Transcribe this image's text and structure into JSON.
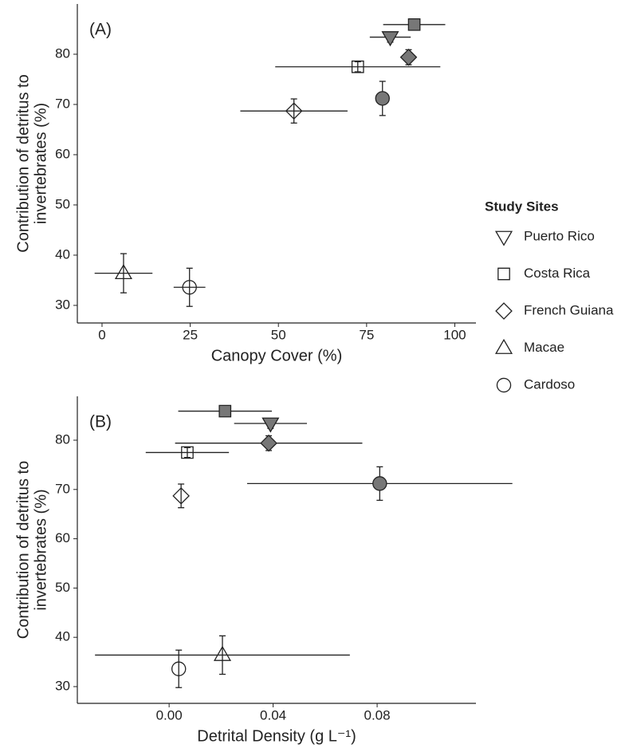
{
  "chart_data": [
    {
      "type": "scatter",
      "title": "(A)",
      "x_label": "Canopy Cover (%)",
      "y_label": [
        "Contribution of detritus to",
        "invertebrates (%)"
      ],
      "xlim": [
        -7,
        106
      ],
      "ylim": [
        26.5,
        90
      ],
      "xticks": [
        0,
        25,
        50,
        75,
        100
      ],
      "yticks": [
        30,
        40,
        50,
        60,
        70,
        80
      ],
      "legend": {
        "title": "Study Sites",
        "position": "right"
      },
      "fill_color": "#777777",
      "series": [
        {
          "name": "Puerto Rico",
          "marker": "triangle-down",
          "x": [
            81.7
          ],
          "values": [
            83.4
          ],
          "x_err": [
            5.8
          ],
          "y_err": [
            1.0
          ],
          "filled": [
            true
          ]
        },
        {
          "name": "Costa Rica",
          "marker": "square",
          "x": [
            88.5,
            72.5
          ],
          "values": [
            85.9,
            77.5
          ],
          "x_err": [
            8.8,
            23.4
          ],
          "y_err": [
            1.0,
            1.0
          ],
          "filled": [
            true,
            false
          ]
        },
        {
          "name": "French Guiana",
          "marker": "diamond",
          "x": [
            86.9,
            54.4
          ],
          "values": [
            79.4,
            68.7
          ],
          "x_err": [
            1.0,
            15.2
          ],
          "y_err": [
            1.5,
            2.4
          ],
          "filled": [
            true,
            false
          ]
        },
        {
          "name": "Macae",
          "marker": "triangle-up",
          "x": [
            6.1
          ],
          "values": [
            36.4
          ],
          "x_err": [
            8.2
          ],
          "y_err": [
            3.9
          ],
          "filled": [
            false
          ]
        },
        {
          "name": "Cardoso",
          "marker": "circle",
          "x": [
            79.5,
            24.8
          ],
          "values": [
            71.2,
            33.6
          ],
          "x_err": [
            2.0,
            4.5
          ],
          "y_err": [
            3.4,
            3.8
          ],
          "filled": [
            true,
            false
          ]
        }
      ]
    },
    {
      "type": "scatter",
      "title": "(B)",
      "x_label": "Detrital Density (g L⁻¹)",
      "y_label": [
        "Contribution of detritus to",
        "invertebrates (%)"
      ],
      "xlim": [
        -0.0353,
        0.118
      ],
      "ylim": [
        26.6,
        88.9
      ],
      "xticks": [
        {
          "value": 0,
          "label": "0.00"
        },
        {
          "value": 0.04,
          "label": "0.04"
        },
        {
          "value": 0.08,
          "label": "0.08"
        }
      ],
      "yticks": [
        30,
        40,
        50,
        60,
        70,
        80
      ],
      "fill_color": "#777777",
      "series": [
        {
          "marker": "triangle-down",
          "x": [
            0.039
          ],
          "values": [
            83.4
          ],
          "x_err": [
            0.014
          ],
          "y_err": [
            1.0
          ],
          "filled": [
            true
          ]
        },
        {
          "marker": "square",
          "x": [
            0.0215,
            0.007
          ],
          "values": [
            85.9,
            77.5
          ],
          "x_err": [
            0.018,
            0.016
          ],
          "y_err": [
            1.0,
            1.0
          ],
          "filled": [
            true,
            false
          ]
        },
        {
          "marker": "diamond",
          "x": [
            0.0383,
            0.0046
          ],
          "values": [
            79.4,
            68.7
          ],
          "x_err": [
            0.036,
            0
          ],
          "y_err": [
            1.5,
            2.4
          ],
          "filled": [
            true,
            false
          ]
        },
        {
          "marker": "triangle-up",
          "x": [
            0.0205
          ],
          "values": [
            36.4
          ],
          "x_err": [
            0.049
          ],
          "y_err": [
            3.9
          ],
          "filled": [
            false
          ]
        },
        {
          "marker": "circle",
          "x": [
            0.081,
            0.0037
          ],
          "values": [
            71.2,
            33.6
          ],
          "x_err": [
            0.051,
            0
          ],
          "y_err": [
            3.4,
            3.8
          ],
          "filled": [
            true,
            false
          ]
        }
      ]
    }
  ]
}
